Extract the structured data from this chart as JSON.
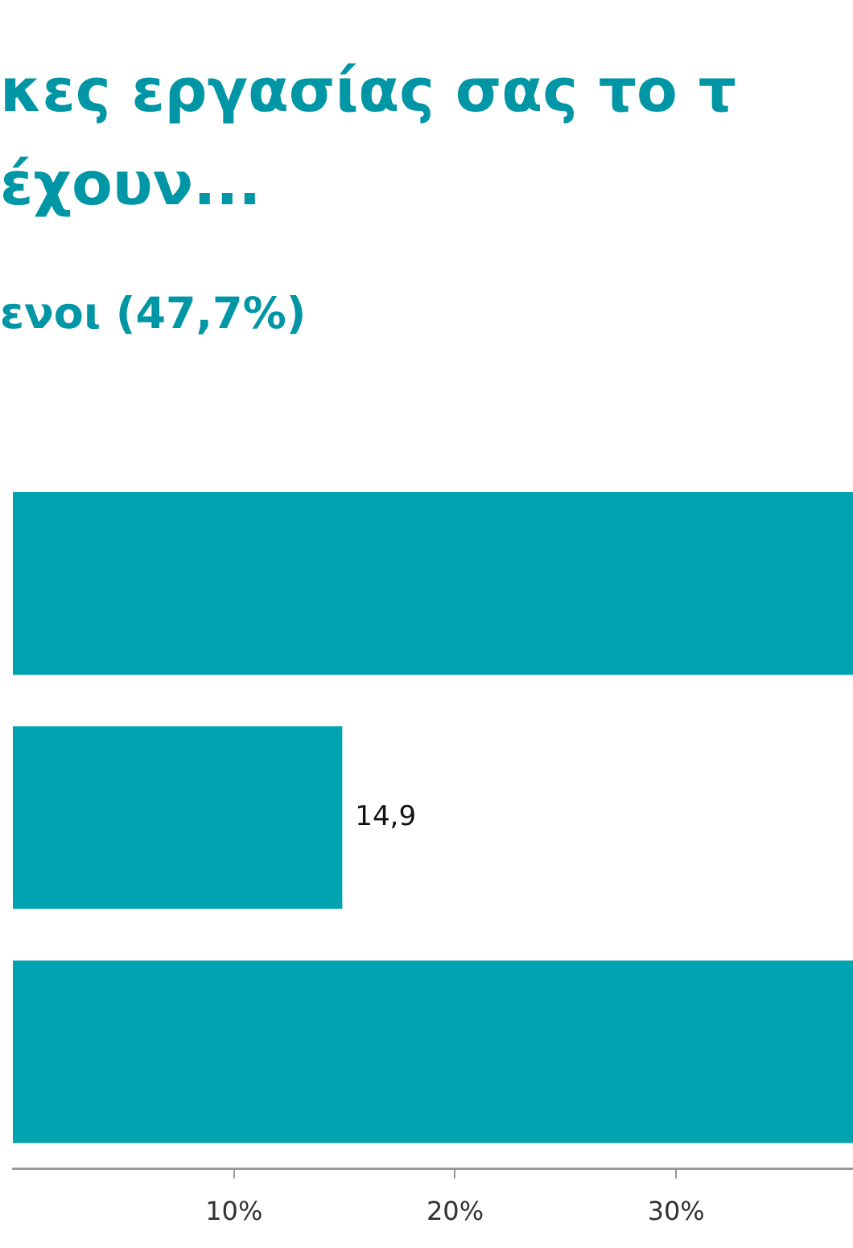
{
  "chart_data": {
    "type": "bar",
    "orientation": "horizontal",
    "title": "κες εργασίας σας το τ έχουν...",
    "subtitle": "ενοι (47,7%)",
    "categories": [
      null,
      null,
      null
    ],
    "values": [
      38,
      14.9,
      38
    ],
    "value_labels": [
      null,
      "14,9",
      null
    ],
    "color": "#00a3b0",
    "xlim": [
      0,
      38
    ],
    "xticks": [
      {
        "value": 10,
        "label": "10%"
      },
      {
        "value": 20,
        "label": "20%"
      },
      {
        "value": 30,
        "label": "30%"
      }
    ],
    "grid": false,
    "legend": false
  }
}
